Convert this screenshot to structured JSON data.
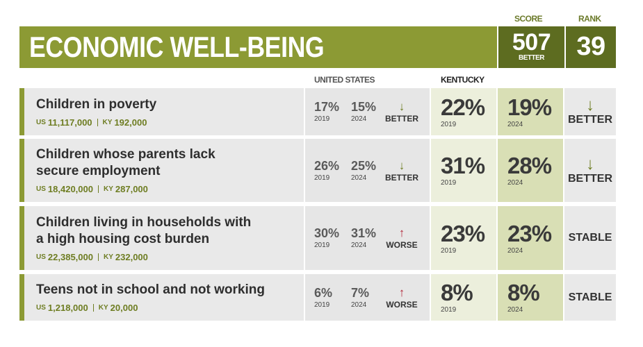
{
  "header": {
    "score_label": "SCORE",
    "rank_label": "RANK",
    "title": "ECONOMIC WELL-BEING",
    "score": "507",
    "score_trend": "BETTER",
    "rank": "39"
  },
  "columns": {
    "us": "UNITED STATES",
    "ky": "KENTUCKY"
  },
  "rows": [
    {
      "label_lines": [
        "Children in poverty"
      ],
      "us_prefix": "US",
      "us_count": "11,117,000",
      "ky_prefix": "KY",
      "ky_count": "192,000",
      "us_2019": "17%",
      "us_2019_year": "2019",
      "us_2024": "15%",
      "us_2024_year": "2024",
      "us_arrow": "↓",
      "us_trend": "BETTER",
      "ky_2019": "22%",
      "ky_2019_year": "2019",
      "ky_2024": "19%",
      "ky_2024_year": "2024",
      "ky_arrow": "↓",
      "ky_trend": "BETTER"
    },
    {
      "label_lines": [
        "Children whose parents lack",
        "secure employment"
      ],
      "us_prefix": "US",
      "us_count": "18,420,000",
      "ky_prefix": "KY",
      "ky_count": "287,000",
      "us_2019": "26%",
      "us_2019_year": "2019",
      "us_2024": "25%",
      "us_2024_year": "2024",
      "us_arrow": "↓",
      "us_trend": "BETTER",
      "ky_2019": "31%",
      "ky_2019_year": "2019",
      "ky_2024": "28%",
      "ky_2024_year": "2024",
      "ky_arrow": "↓",
      "ky_trend": "BETTER"
    },
    {
      "label_lines": [
        "Children living in households with",
        "a high housing cost burden"
      ],
      "us_prefix": "US",
      "us_count": "22,385,000",
      "ky_prefix": "KY",
      "ky_count": "232,000",
      "us_2019": "30%",
      "us_2019_year": "2019",
      "us_2024": "31%",
      "us_2024_year": "2024",
      "us_arrow": "↑",
      "us_trend": "WORSE",
      "ky_2019": "23%",
      "ky_2019_year": "2019",
      "ky_2024": "23%",
      "ky_2024_year": "2024",
      "ky_trend": "STABLE"
    },
    {
      "label_lines": [
        "Teens not in school and not working"
      ],
      "us_prefix": "US",
      "us_count": "1,218,000",
      "ky_prefix": "KY",
      "ky_count": "20,000",
      "us_2019": "6%",
      "us_2019_year": "2019",
      "us_2024": "7%",
      "us_2024_year": "2024",
      "us_arrow": "↑",
      "us_trend": "WORSE",
      "ky_2019": "8%",
      "ky_2019_year": "2019",
      "ky_2024": "8%",
      "ky_2024_year": "2024",
      "ky_trend": "STABLE"
    }
  ]
}
